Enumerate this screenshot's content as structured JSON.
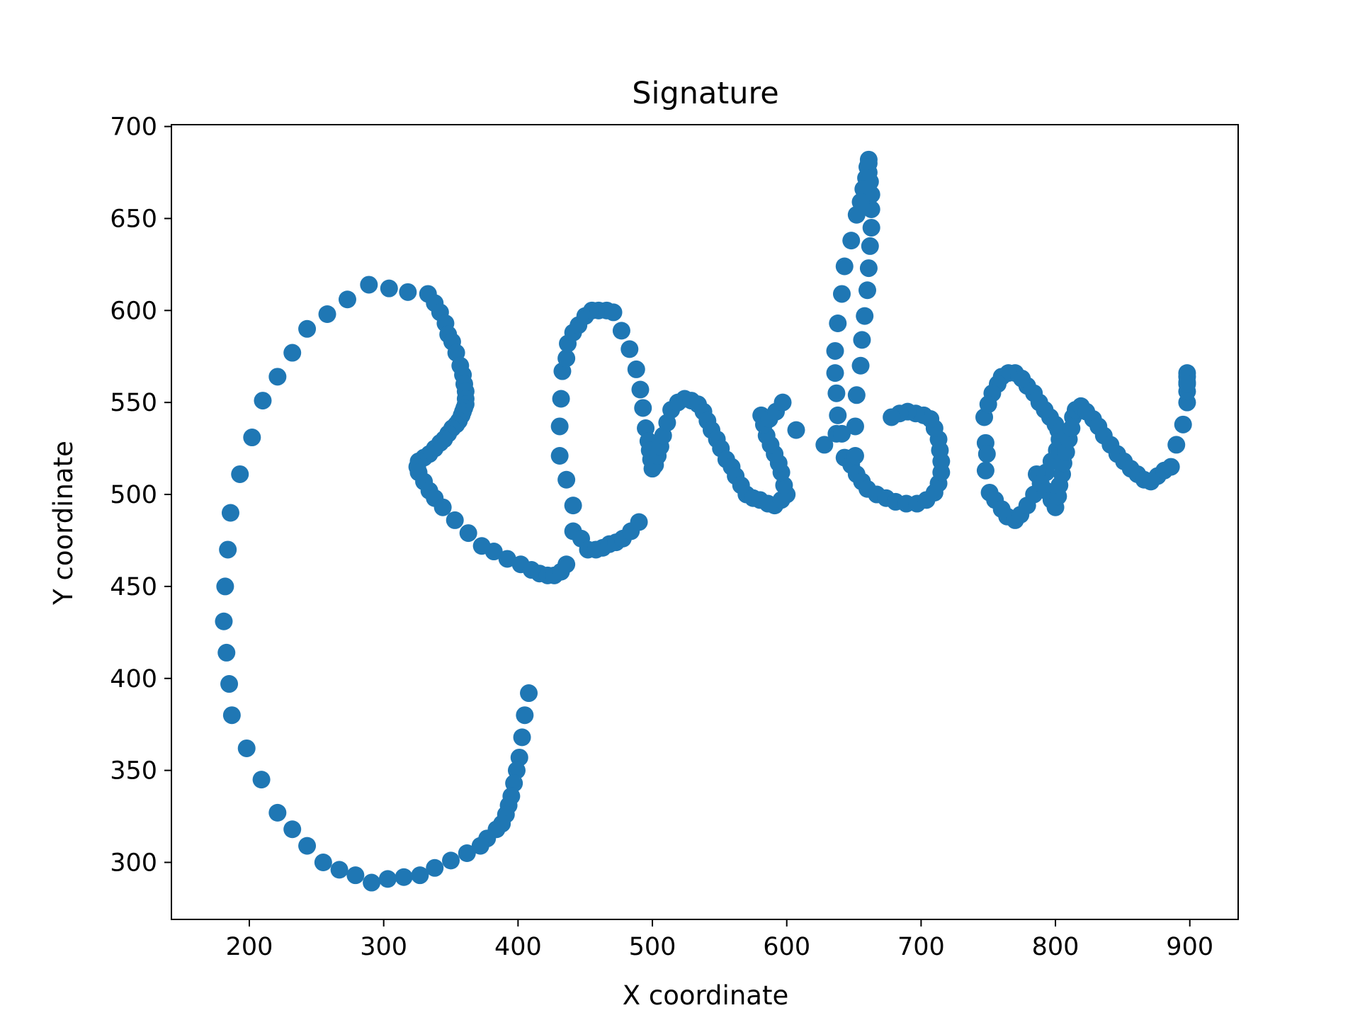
{
  "chart_data": {
    "type": "scatter",
    "title": "Signature",
    "xlabel": "X coordinate",
    "ylabel": "Y coordinate",
    "xlim": [
      142,
      936
    ],
    "ylim": [
      269,
      701
    ],
    "xticks": [
      200,
      300,
      400,
      500,
      600,
      700,
      800,
      900
    ],
    "yticks": [
      300,
      350,
      400,
      450,
      500,
      550,
      600,
      650,
      700
    ],
    "grid": false,
    "legend": "none",
    "marker_color": "#1f77b4",
    "series": [
      {
        "points": [
          [
            408,
            392
          ],
          [
            405,
            380
          ],
          [
            403,
            368
          ],
          [
            401,
            357
          ],
          [
            399,
            350
          ],
          [
            397,
            343
          ],
          [
            395,
            336
          ],
          [
            393,
            331
          ],
          [
            391,
            326
          ],
          [
            388,
            321
          ],
          [
            384,
            318
          ],
          [
            377,
            313
          ],
          [
            372,
            309
          ],
          [
            362,
            305
          ],
          [
            350,
            301
          ],
          [
            338,
            297
          ],
          [
            327,
            293
          ],
          [
            315,
            292
          ],
          [
            303,
            291
          ],
          [
            291,
            289
          ],
          [
            279,
            293
          ],
          [
            267,
            296
          ],
          [
            255,
            300
          ],
          [
            243,
            309
          ],
          [
            232,
            318
          ],
          [
            221,
            327
          ],
          [
            209,
            345
          ],
          [
            198,
            362
          ],
          [
            187,
            380
          ],
          [
            185,
            397
          ],
          [
            183,
            414
          ],
          [
            181,
            431
          ],
          [
            182,
            450
          ],
          [
            184,
            470
          ],
          [
            186,
            490
          ],
          [
            193,
            511
          ],
          [
            202,
            531
          ],
          [
            210,
            551
          ],
          [
            221,
            564
          ],
          [
            232,
            577
          ],
          [
            243,
            590
          ],
          [
            258,
            598
          ],
          [
            273,
            606
          ],
          [
            289,
            614
          ],
          [
            304,
            612
          ],
          [
            318,
            610
          ],
          [
            333,
            609
          ],
          [
            338,
            604
          ],
          [
            342,
            599
          ],
          [
            346,
            593
          ],
          [
            348,
            587
          ],
          [
            351,
            583
          ],
          [
            354,
            577
          ],
          [
            357,
            570
          ],
          [
            359,
            565
          ],
          [
            360,
            560
          ],
          [
            361,
            556
          ],
          [
            361,
            552
          ],
          [
            361,
            549
          ],
          [
            360,
            547
          ],
          [
            359,
            545
          ],
          [
            358,
            543
          ],
          [
            356,
            540
          ],
          [
            354,
            538
          ],
          [
            351,
            536
          ],
          [
            348,
            533
          ],
          [
            345,
            530
          ],
          [
            342,
            528
          ],
          [
            338,
            525
          ],
          [
            334,
            522
          ],
          [
            330,
            520
          ],
          [
            326,
            518
          ],
          [
            325,
            515
          ],
          [
            326,
            512
          ],
          [
            330,
            507
          ],
          [
            334,
            502
          ],
          [
            338,
            498
          ],
          [
            344,
            493
          ],
          [
            353,
            486
          ],
          [
            363,
            479
          ],
          [
            373,
            472
          ],
          [
            382,
            469
          ],
          [
            392,
            465
          ],
          [
            402,
            462
          ],
          [
            410,
            459
          ],
          [
            416,
            457
          ],
          [
            422,
            456
          ],
          [
            427,
            456
          ],
          [
            432,
            458
          ],
          [
            436,
            462
          ],
          [
            441,
            480
          ],
          [
            447,
            476
          ],
          [
            452,
            470
          ],
          [
            458,
            470
          ],
          [
            463,
            471
          ],
          [
            468,
            473
          ],
          [
            473,
            474
          ],
          [
            478,
            476
          ],
          [
            484,
            480
          ],
          [
            490,
            485
          ],
          [
            441,
            494
          ],
          [
            436,
            508
          ],
          [
            431,
            521
          ],
          [
            431,
            537
          ],
          [
            432,
            552
          ],
          [
            433,
            567
          ],
          [
            436,
            574
          ],
          [
            437,
            582
          ],
          [
            441,
            588
          ],
          [
            445,
            592
          ],
          [
            450,
            597
          ],
          [
            455,
            600
          ],
          [
            460,
            600
          ],
          [
            466,
            600
          ],
          [
            471,
            599
          ],
          [
            477,
            589
          ],
          [
            483,
            579
          ],
          [
            488,
            568
          ],
          [
            491,
            557
          ],
          [
            493,
            547
          ],
          [
            495,
            536
          ],
          [
            497,
            529
          ],
          [
            498,
            524
          ],
          [
            499,
            519
          ],
          [
            500,
            514
          ],
          [
            502,
            516
          ],
          [
            504,
            521
          ],
          [
            506,
            526
          ],
          [
            508,
            532
          ],
          [
            511,
            539
          ],
          [
            514,
            546
          ],
          [
            519,
            550
          ],
          [
            524,
            552
          ],
          [
            529,
            551
          ],
          [
            534,
            549
          ],
          [
            538,
            545
          ],
          [
            541,
            540
          ],
          [
            544,
            535
          ],
          [
            548,
            530
          ],
          [
            551,
            525
          ],
          [
            555,
            519
          ],
          [
            559,
            515
          ],
          [
            562,
            510
          ],
          [
            566,
            505
          ],
          [
            570,
            500
          ],
          [
            575,
            498
          ],
          [
            580,
            497
          ],
          [
            586,
            495
          ],
          [
            591,
            494
          ],
          [
            596,
            497
          ],
          [
            600,
            500
          ],
          [
            598,
            505
          ],
          [
            596,
            512
          ],
          [
            594,
            517
          ],
          [
            591,
            522
          ],
          [
            588,
            527
          ],
          [
            585,
            532
          ],
          [
            583,
            538
          ],
          [
            581,
            543
          ],
          [
            587,
            541
          ],
          [
            592,
            545
          ],
          [
            597,
            550
          ],
          [
            607,
            535
          ],
          [
            628,
            527
          ],
          [
            637,
            533
          ],
          [
            643,
            520
          ],
          [
            648,
            516
          ],
          [
            652,
            511
          ],
          [
            656,
            507
          ],
          [
            660,
            503
          ],
          [
            667,
            500
          ],
          [
            674,
            498
          ],
          [
            681,
            496
          ],
          [
            689,
            495
          ],
          [
            697,
            495
          ],
          [
            704,
            497
          ],
          [
            710,
            501
          ],
          [
            713,
            506
          ],
          [
            715,
            512
          ],
          [
            715,
            518
          ],
          [
            714,
            524
          ],
          [
            713,
            530
          ],
          [
            710,
            536
          ],
          [
            707,
            541
          ],
          [
            702,
            543
          ],
          [
            696,
            544
          ],
          [
            690,
            545
          ],
          [
            684,
            544
          ],
          [
            678,
            542
          ],
          [
            651,
            537
          ],
          [
            652,
            554
          ],
          [
            655,
            570
          ],
          [
            656,
            584
          ],
          [
            658,
            597
          ],
          [
            660,
            611
          ],
          [
            661,
            623
          ],
          [
            662,
            635
          ],
          [
            663,
            645
          ],
          [
            663,
            655
          ],
          [
            663,
            663
          ],
          [
            662,
            670
          ],
          [
            661,
            675
          ],
          [
            661,
            680
          ],
          [
            661,
            682
          ],
          [
            660,
            678
          ],
          [
            659,
            672
          ],
          [
            657,
            666
          ],
          [
            655,
            659
          ],
          [
            652,
            652
          ],
          [
            648,
            638
          ],
          [
            643,
            624
          ],
          [
            641,
            609
          ],
          [
            638,
            593
          ],
          [
            636,
            578
          ],
          [
            636,
            566
          ],
          [
            637,
            555
          ],
          [
            638,
            543
          ],
          [
            641,
            533
          ],
          [
            651,
            521
          ],
          [
            747,
            542
          ],
          [
            748,
            528
          ],
          [
            749,
            522
          ],
          [
            748,
            513
          ],
          [
            751,
            501
          ],
          [
            755,
            497
          ],
          [
            760,
            492
          ],
          [
            764,
            488
          ],
          [
            770,
            486
          ],
          [
            774,
            489
          ],
          [
            779,
            494
          ],
          [
            784,
            500
          ],
          [
            789,
            506
          ],
          [
            793,
            512
          ],
          [
            797,
            518
          ],
          [
            801,
            524
          ],
          [
            803,
            530
          ],
          [
            802,
            535
          ],
          [
            800,
            538
          ],
          [
            796,
            542
          ],
          [
            792,
            546
          ],
          [
            788,
            550
          ],
          [
            784,
            555
          ],
          [
            779,
            559
          ],
          [
            775,
            563
          ],
          [
            770,
            566
          ],
          [
            765,
            566
          ],
          [
            760,
            564
          ],
          [
            757,
            560
          ],
          [
            753,
            555
          ],
          [
            750,
            549
          ],
          [
            786,
            511
          ],
          [
            789,
            506
          ],
          [
            793,
            502
          ],
          [
            797,
            497
          ],
          [
            800,
            493
          ],
          [
            802,
            499
          ],
          [
            803,
            505
          ],
          [
            805,
            511
          ],
          [
            806,
            517
          ],
          [
            808,
            523
          ],
          [
            810,
            530
          ],
          [
            812,
            536
          ],
          [
            813,
            542
          ],
          [
            815,
            546
          ],
          [
            819,
            548
          ],
          [
            823,
            545
          ],
          [
            828,
            541
          ],
          [
            832,
            537
          ],
          [
            836,
            532
          ],
          [
            841,
            527
          ],
          [
            846,
            522
          ],
          [
            851,
            518
          ],
          [
            856,
            514
          ],
          [
            861,
            511
          ],
          [
            866,
            508
          ],
          [
            871,
            507
          ],
          [
            876,
            510
          ],
          [
            881,
            513
          ],
          [
            886,
            515
          ],
          [
            890,
            527
          ],
          [
            895,
            538
          ],
          [
            898,
            550
          ],
          [
            898,
            556
          ],
          [
            898,
            561
          ],
          [
            898,
            564
          ],
          [
            898,
            566
          ],
          [
            898,
            560
          ]
        ]
      }
    ]
  }
}
